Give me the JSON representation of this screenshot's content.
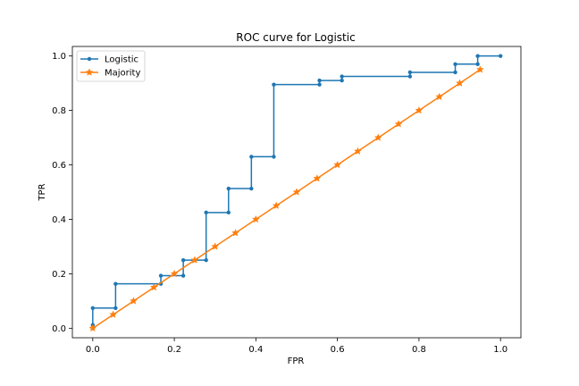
{
  "chart_data": {
    "type": "line",
    "title": "ROC curve for Logistic",
    "xlabel": "FPR",
    "ylabel": "TPR",
    "xlim": [
      -0.05,
      1.05
    ],
    "ylim": [
      -0.035,
      1.035
    ],
    "xticks": [
      0.0,
      0.2,
      0.4,
      0.6,
      0.8,
      1.0
    ],
    "yticks": [
      0.0,
      0.2,
      0.4,
      0.6,
      0.8,
      1.0
    ],
    "xtick_labels": [
      "0.0",
      "0.2",
      "0.4",
      "0.6",
      "0.8",
      "1.0"
    ],
    "ytick_labels": [
      "0.0",
      "0.2",
      "0.4",
      "0.6",
      "0.8",
      "1.0"
    ],
    "grid": false,
    "legend_position": "upper-left",
    "series": [
      {
        "name": "Logistic",
        "color": "#1f77b4",
        "marker": "circle",
        "x": [
          0.0,
          0.0,
          0.0,
          0.056,
          0.056,
          0.167,
          0.167,
          0.222,
          0.222,
          0.278,
          0.278,
          0.333,
          0.333,
          0.389,
          0.389,
          0.444,
          0.444,
          0.556,
          0.556,
          0.611,
          0.611,
          0.778,
          0.778,
          0.889,
          0.889,
          0.944,
          0.944,
          1.0
        ],
        "y": [
          0.0,
          0.012,
          0.074,
          0.074,
          0.163,
          0.163,
          0.193,
          0.193,
          0.25,
          0.25,
          0.425,
          0.425,
          0.513,
          0.513,
          0.63,
          0.63,
          0.895,
          0.895,
          0.91,
          0.91,
          0.925,
          0.925,
          0.94,
          0.94,
          0.97,
          0.97,
          1.0,
          1.0
        ]
      },
      {
        "name": "Majority",
        "color": "#ff7f0e",
        "marker": "star",
        "x": [
          0.0,
          0.05,
          0.1,
          0.15,
          0.2,
          0.25,
          0.3,
          0.35,
          0.4,
          0.45,
          0.5,
          0.55,
          0.6,
          0.65,
          0.7,
          0.75,
          0.8,
          0.85,
          0.9,
          0.95
        ],
        "y": [
          0.0,
          0.05,
          0.1,
          0.15,
          0.2,
          0.25,
          0.3,
          0.35,
          0.4,
          0.45,
          0.5,
          0.55,
          0.6,
          0.65,
          0.7,
          0.75,
          0.8,
          0.85,
          0.9,
          0.95
        ]
      }
    ]
  }
}
